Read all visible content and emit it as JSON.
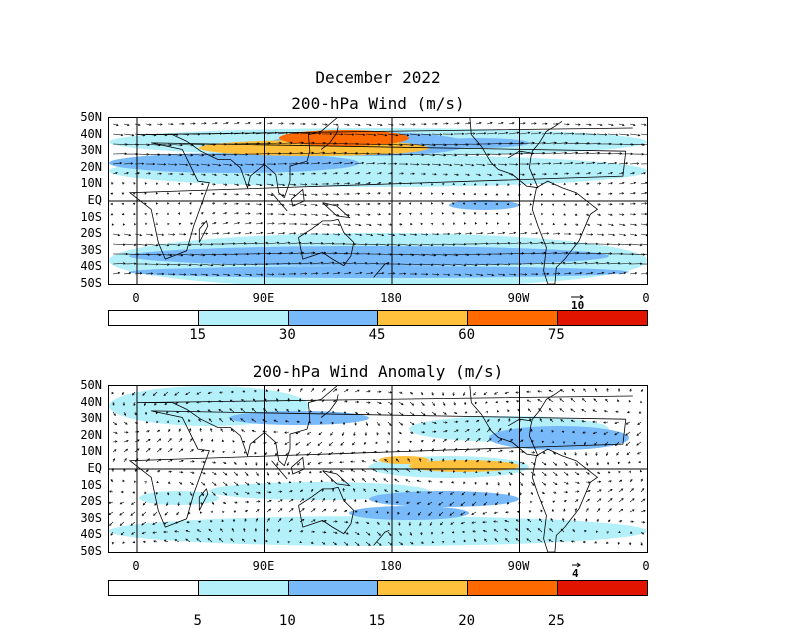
{
  "title_line1": "December 2022",
  "panels": [
    {
      "title": "200-hPa Wind (m/s)",
      "lat_labels": [
        "50N",
        "40N",
        "30N",
        "20N",
        "10N",
        "EQ",
        "10S",
        "20S",
        "30S",
        "40S",
        "50S"
      ],
      "lon_labels": [
        "0",
        "90E",
        "180",
        "90W",
        "0"
      ],
      "ref_vector_label": "10",
      "colorbar": {
        "colors": [
          "#ffffff",
          "#b4f0fa",
          "#78b9fa",
          "#ffc03c",
          "#ff6a00",
          "#e11400"
        ],
        "labels": [
          "15",
          "30",
          "45",
          "60",
          "75"
        ]
      }
    },
    {
      "title": "200-hPa Wind Anomaly (m/s)",
      "lat_labels": [
        "50N",
        "40N",
        "30N",
        "20N",
        "10N",
        "EQ",
        "10S",
        "20S",
        "30S",
        "40S",
        "50S"
      ],
      "lon_labels": [
        "0",
        "90E",
        "180",
        "90W",
        "0"
      ],
      "ref_vector_label": "4",
      "colorbar": {
        "colors": [
          "#ffffff",
          "#b4f0fa",
          "#78b9fa",
          "#ffc03c",
          "#ff6a00",
          "#e11400"
        ],
        "labels": [
          "5",
          "10",
          "15",
          "20",
          "25"
        ]
      }
    }
  ]
}
